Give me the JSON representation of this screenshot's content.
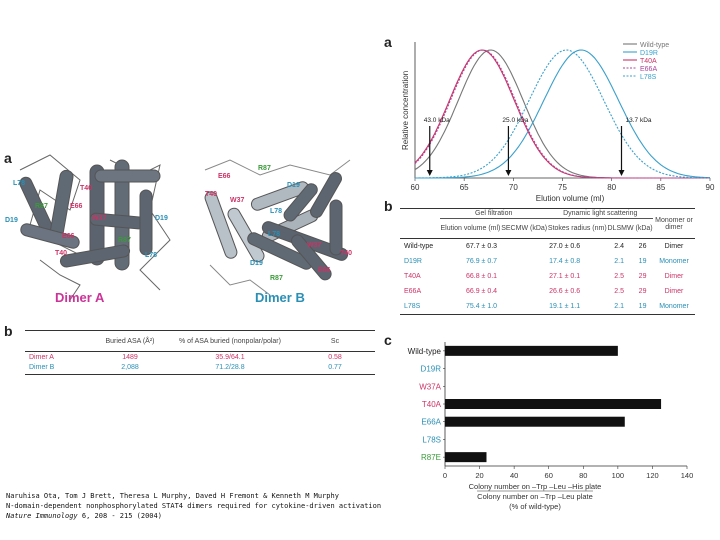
{
  "left": {
    "panel_a_label": "a",
    "dimer_a_label": "Dimer A",
    "dimer_b_label": "Dimer B",
    "dimer_a_residues": [
      "L78",
      "R87",
      "T40",
      "E66",
      "W37",
      "D19",
      "E66",
      "R87",
      "T40",
      "L78",
      "D19"
    ],
    "dimer_b_residues": [
      "E66",
      "R87",
      "T40",
      "W37",
      "D19",
      "L78",
      "L78",
      "W37",
      "D19",
      "R87",
      "T40",
      "E66"
    ],
    "panel_b_label": "b",
    "table": {
      "headers": [
        "",
        "Buried ASA (Å²)",
        "% of ASA buried (nonpolar/polar)",
        "Sc"
      ],
      "rows": [
        {
          "label": "Dimer A",
          "asa": "1489",
          "pct": "35.9/64.1",
          "sc": "0.58",
          "color": "#cc3366"
        },
        {
          "label": "Dimer B",
          "asa": "2,088",
          "pct": "71.2/28.8",
          "sc": "0.77",
          "color": "#2a8fb5"
        }
      ]
    }
  },
  "citation": {
    "authors": "Naruhisa Ota, Tom J Brett, Theresa L Murphy, Daved H Fremont & Kenneth M Murphy",
    "title": "N-domain-dependent nonphosphorylated STAT4 dimers required for cytokine-driven activation",
    "journal": "Nature Immunology",
    "ref": "6, 208 - 215 (2004)"
  },
  "right": {
    "panel_a_label": "a",
    "panel_b_label": "b",
    "panel_c_label": "c",
    "elution_chart": {
      "ylabel": "Relative concentration",
      "xlabel": "Elution volume (ml)",
      "markers": [
        {
          "label": "43.0 kDa",
          "x": 61.5
        },
        {
          "label": "25.0 kDa",
          "x": 69.5
        },
        {
          "label": "13.7 kDa",
          "x": 81
        }
      ]
    },
    "sec_table": {
      "group_headers": [
        "Gel filtration",
        "Dynamic light scattering",
        "Monomer or dimer"
      ],
      "headers": [
        "",
        "Elution volume (ml)",
        "SECMW (kDa)",
        "Stokes radius (nm)",
        "DLSMW (kDa)",
        ""
      ],
      "rows": [
        {
          "label": "Wild-type",
          "color": "#222222",
          "ev": "67.7 ± 0.3",
          "secmw": "27.0 ± 0.6",
          "stokes": "2.4",
          "dls": "26",
          "state": "Dimer"
        },
        {
          "label": "D19R",
          "color": "#2a8fb5",
          "ev": "76.9 ± 0.7",
          "secmw": "17.4 ± 0.8",
          "stokes": "2.1",
          "dls": "19",
          "state": "Monomer"
        },
        {
          "label": "T40A",
          "color": "#cc3366",
          "ev": "66.8 ± 0.1",
          "secmw": "27.1 ± 0.1",
          "stokes": "2.5",
          "dls": "29",
          "state": "Dimer"
        },
        {
          "label": "E66A",
          "color": "#cc3366",
          "ev": "66.9 ± 0.4",
          "secmw": "26.6 ± 0.6",
          "stokes": "2.5",
          "dls": "29",
          "state": "Dimer"
        },
        {
          "label": "L78S",
          "color": "#2a8fb5",
          "ev": "75.4 ± 1.0",
          "secmw": "19.1 ± 1.1",
          "stokes": "2.1",
          "dls": "19",
          "state": "Monomer"
        }
      ]
    },
    "colony_chart": {
      "xlabel_line1": "Colony number on –Trp –Leu –His plate",
      "xlabel_line2": "Colony number on –Trp –Leu plate",
      "xlabel_line3": "(% of wild-type)"
    }
  },
  "chart_data": [
    {
      "type": "line",
      "xlabel": "Elution volume (ml)",
      "ylabel": "Relative concentration",
      "xlim": [
        60,
        90
      ],
      "xticks": [
        60,
        65,
        70,
        75,
        80,
        85,
        90
      ],
      "legend": "top-right",
      "series": [
        {
          "name": "Wild-type",
          "color": "#777777",
          "peak": 67.7,
          "width": 3.3,
          "dash": "solid"
        },
        {
          "name": "D19R",
          "color": "#3aa0cc",
          "peak": 76.9,
          "width": 3.8,
          "dash": "solid"
        },
        {
          "name": "T40A",
          "color": "#cc3366",
          "peak": 66.8,
          "width": 3.3,
          "dash": "solid"
        },
        {
          "name": "E66A",
          "color": "#aa4499",
          "peak": 66.9,
          "width": 3.3,
          "dash": "dashed"
        },
        {
          "name": "L78S",
          "color": "#3aa0cc",
          "peak": 75.4,
          "width": 3.8,
          "dash": "dashed"
        }
      ]
    },
    {
      "type": "bar",
      "orientation": "horizontal",
      "categories": [
        "Wild-type",
        "D19R",
        "W37A",
        "T40A",
        "E66A",
        "L78S",
        "R87E"
      ],
      "category_colors": [
        "#222222",
        "#2a8fb5",
        "#cc3366",
        "#cc3366",
        "#2a8fb5",
        "#2a8fb5",
        "#3a9a3a"
      ],
      "values": [
        100,
        0,
        0,
        125,
        104,
        0,
        24
      ],
      "xlim": [
        0,
        140
      ],
      "xticks": [
        0,
        20,
        40,
        60,
        80,
        100,
        120,
        140
      ]
    }
  ]
}
